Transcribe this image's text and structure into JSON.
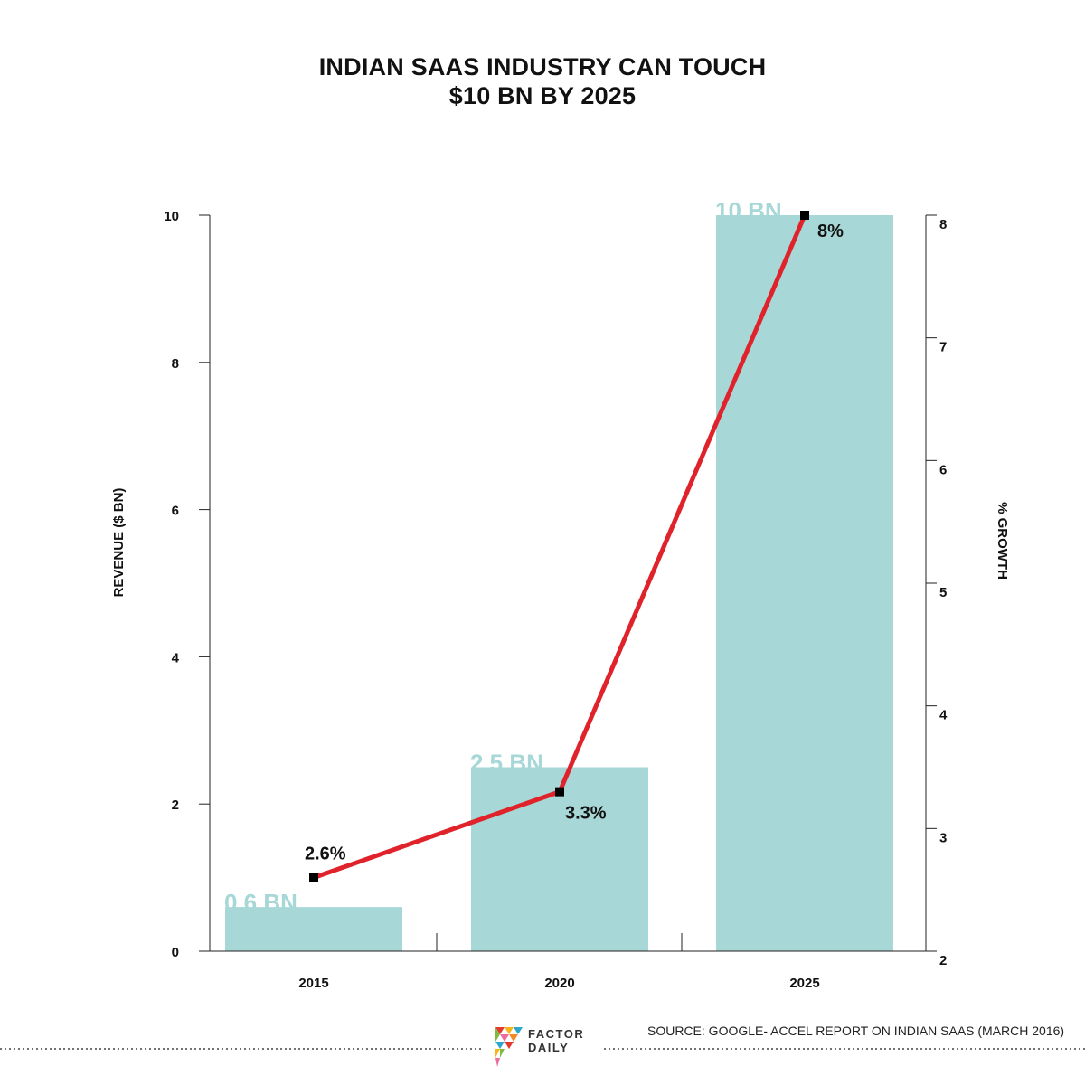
{
  "title": {
    "line1": "INDIAN SAAS INDUSTRY CAN TOUCH",
    "line2": "$10 BN BY 2025"
  },
  "chart_data": {
    "type": "bar",
    "categories": [
      "2015",
      "2020",
      "2025"
    ],
    "series": [
      {
        "type": "bar",
        "axis": "left",
        "values": [
          0.6,
          2.5,
          10
        ],
        "labels": [
          "0.6 BN",
          "2.5 BN",
          "10 BN"
        ],
        "color": "#a7d7d7"
      },
      {
        "type": "line",
        "axis": "right",
        "values": [
          2.6,
          3.3,
          8
        ],
        "labels": [
          "2.6%",
          "3.3%",
          "8%"
        ],
        "color": "#e0232b",
        "marker_color": "#000000"
      }
    ],
    "ylabel": "REVENUE ($ BN)",
    "y2label": "% GROWTH",
    "ylim": [
      0,
      10
    ],
    "y2lim": [
      2,
      8
    ],
    "yticks": [
      0,
      2,
      4,
      6,
      8,
      10
    ],
    "y2ticks": [
      2,
      3,
      4,
      5,
      6,
      7,
      8
    ],
    "grid": false
  },
  "footer": {
    "source": "SOURCE: GOOGLE- ACCEL REPORT ON INDIAN SAAS (MARCH 2016)",
    "brand_line1": "FACTOR",
    "brand_line2": "DAILY"
  }
}
